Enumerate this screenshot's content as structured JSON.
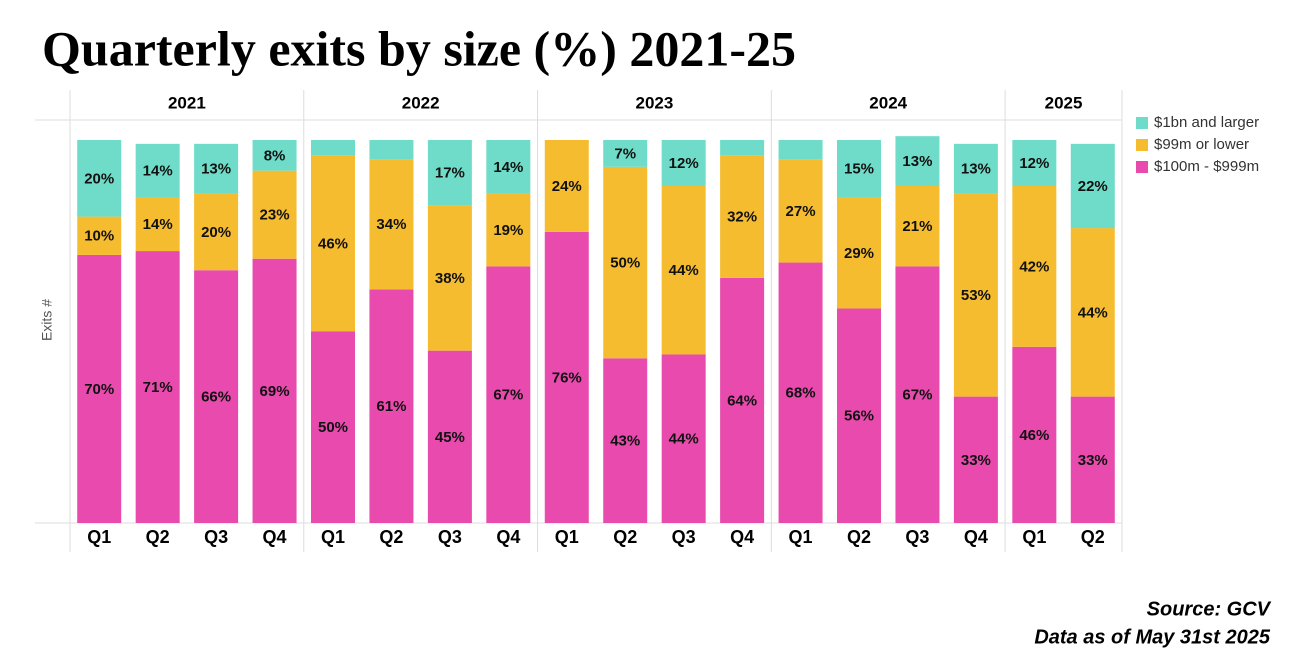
{
  "chart_data": {
    "type": "bar",
    "stacked": true,
    "title": "Quarterly exits by size (%) 2021-25",
    "y_label": "Exits #",
    "notes": [
      "Source: GCV",
      "Data as of May 31st 2025"
    ],
    "groups": [
      {
        "name": "2021",
        "categories": [
          "Q1",
          "Q2",
          "Q3",
          "Q4"
        ]
      },
      {
        "name": "2022",
        "categories": [
          "Q1",
          "Q2",
          "Q3",
          "Q4"
        ]
      },
      {
        "name": "2023",
        "categories": [
          "Q1",
          "Q2",
          "Q3",
          "Q4"
        ]
      },
      {
        "name": "2024",
        "categories": [
          "Q1",
          "Q2",
          "Q3",
          "Q4"
        ]
      },
      {
        "name": "2025",
        "categories": [
          "Q1",
          "Q2"
        ]
      }
    ],
    "ylim": [
      0,
      100
    ],
    "legend": "right",
    "series": [
      {
        "name": "$1bn and larger",
        "color": "#6edcc8",
        "values": [
          20,
          14,
          13,
          8,
          4,
          5,
          17,
          14,
          0,
          7,
          12,
          4,
          5,
          15,
          13,
          13,
          12,
          22
        ],
        "value_labels": [
          "20%",
          "14%",
          "13%",
          "8%",
          null,
          null,
          "17%",
          "14%",
          null,
          "7%",
          "12%",
          null,
          null,
          "15%",
          "13%",
          "13%",
          "12%",
          "22%"
        ]
      },
      {
        "name": "$99m or lower",
        "color": "#f5bc30",
        "values": [
          10,
          14,
          20,
          23,
          46,
          34,
          38,
          19,
          24,
          50,
          44,
          32,
          27,
          29,
          21,
          53,
          42,
          44
        ],
        "value_labels": [
          "10%",
          "14%",
          "20%",
          "23%",
          "46%",
          "34%",
          "38%",
          "19%",
          "24%",
          "50%",
          "44%",
          "32%",
          "27%",
          "29%",
          "21%",
          "53%",
          "42%",
          "44%"
        ]
      },
      {
        "name": "$100m - $999m",
        "color": "#e84aad",
        "values": [
          70,
          71,
          66,
          69,
          50,
          61,
          45,
          67,
          76,
          43,
          44,
          64,
          68,
          56,
          67,
          33,
          46,
          33
        ],
        "value_labels": [
          "70%",
          "71%",
          "66%",
          "69%",
          "50%",
          "61%",
          "45%",
          "67%",
          "76%",
          "43%",
          "44%",
          "64%",
          "68%",
          "56%",
          "67%",
          "33%",
          "46%",
          "33%"
        ]
      }
    ]
  }
}
